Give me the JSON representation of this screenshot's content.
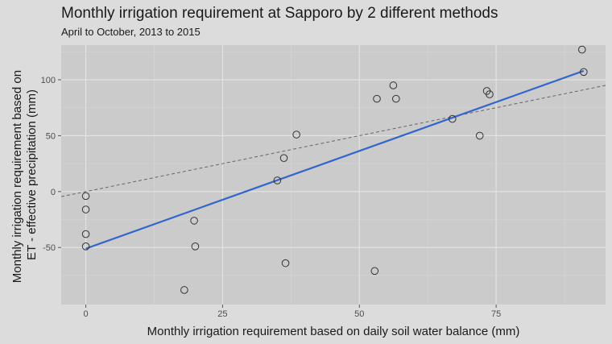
{
  "chart_data": {
    "type": "scatter",
    "title": "Monthly irrigation requirement at Sapporo by 2 different methods",
    "subtitle": "April to October, 2013 to 2015",
    "xlabel": "Monthly irrigation requirement based on daily soil water balance (mm)",
    "ylabel_lines": [
      "Monthly irrigation requirement based on",
      "ET - effective precipitation (mm)"
    ],
    "xlim": [
      -4.5,
      95
    ],
    "ylim": [
      -101,
      131
    ],
    "x_ticks": [
      0,
      25,
      50,
      75
    ],
    "y_ticks": [
      -50,
      0,
      50,
      100
    ],
    "grid": true,
    "points": [
      {
        "x": 0,
        "y": -4
      },
      {
        "x": 0,
        "y": -16
      },
      {
        "x": 0,
        "y": -38
      },
      {
        "x": 0,
        "y": -49
      },
      {
        "x": 18,
        "y": -88
      },
      {
        "x": 19.8,
        "y": -26
      },
      {
        "x": 20,
        "y": -49
      },
      {
        "x": 35,
        "y": 10
      },
      {
        "x": 36.2,
        "y": 30
      },
      {
        "x": 36.5,
        "y": -64
      },
      {
        "x": 38.5,
        "y": 51
      },
      {
        "x": 52.8,
        "y": -71
      },
      {
        "x": 53.2,
        "y": 83
      },
      {
        "x": 56.2,
        "y": 95
      },
      {
        "x": 56.7,
        "y": 83
      },
      {
        "x": 67,
        "y": 65
      },
      {
        "x": 72,
        "y": 50
      },
      {
        "x": 73.3,
        "y": 90
      },
      {
        "x": 73.8,
        "y": 87
      },
      {
        "x": 90.7,
        "y": 127
      },
      {
        "x": 91,
        "y": 107
      }
    ],
    "fit_line": {
      "x": [
        0,
        91
      ],
      "y": [
        -51,
        108
      ],
      "color": "#3366cc"
    },
    "identity_line": {
      "slope": 1,
      "intercept": 0,
      "style": "dashed",
      "color": "#666666"
    },
    "colors": {
      "panel": "#cbcbcb",
      "background": "#dcdcdc",
      "grid_major": "#e4e4e4",
      "grid_minor": "#d6d6d6",
      "point_stroke": "#333333"
    }
  }
}
